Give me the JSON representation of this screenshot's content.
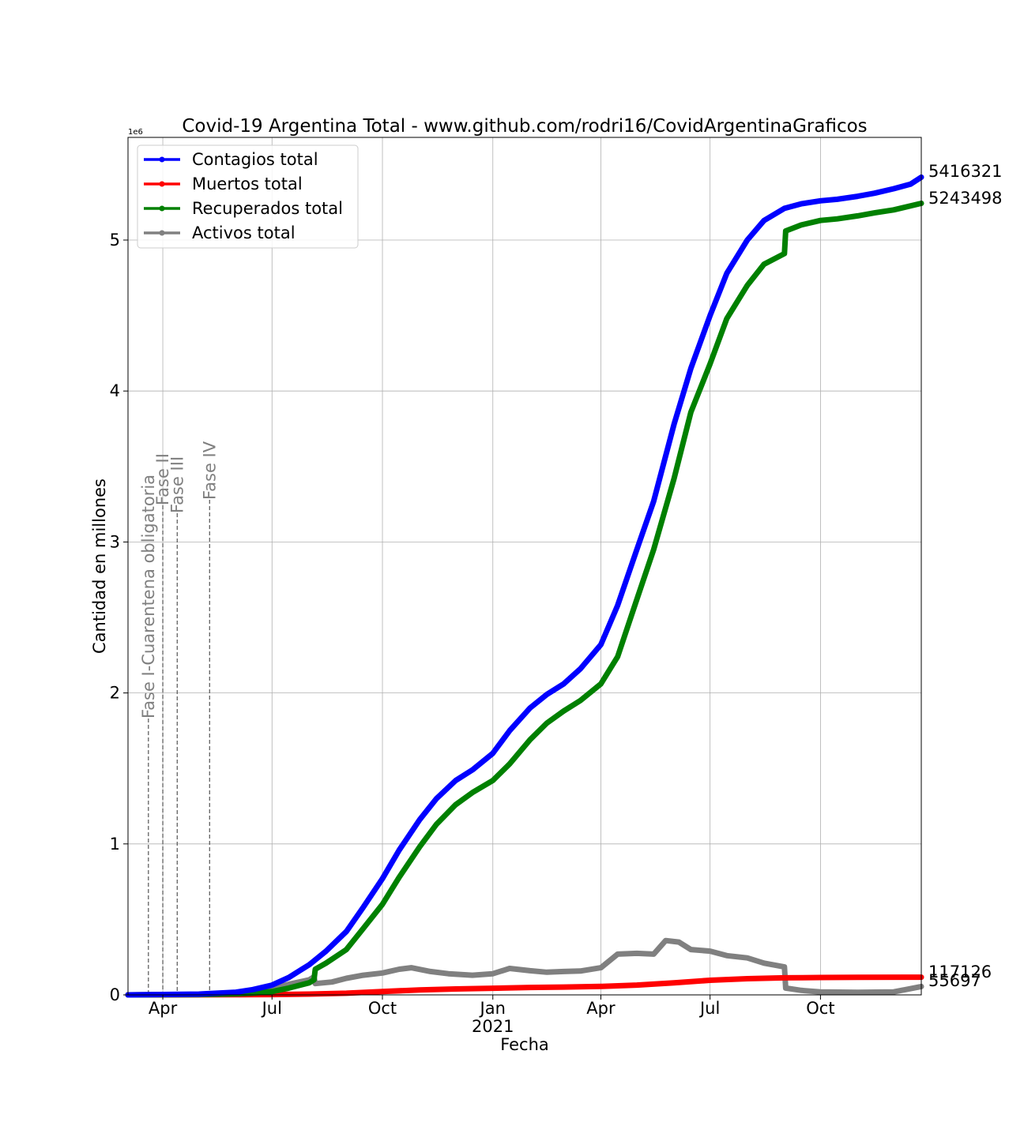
{
  "chart_data": {
    "type": "line",
    "title": "Covid-19 Argentina Total - www.github.com/rodri16/CovidArgentinaGraficos",
    "xlabel": "Fecha",
    "ylabel": "Cantidad en millones",
    "y_scale_label": "1e6",
    "xlim": [
      "2020-03-03",
      "2021-12-24"
    ],
    "ylim": [
      0,
      5.68
    ],
    "grid": true,
    "legend_position": "top-left",
    "x_ticks": [
      {
        "date": "2020-04-01",
        "label": "Apr"
      },
      {
        "date": "2020-07-01",
        "label": "Jul"
      },
      {
        "date": "2020-10-01",
        "label": "Oct"
      },
      {
        "date": "2021-01-01",
        "label": "Jan"
      },
      {
        "date": "2021-04-01",
        "label": "Apr"
      },
      {
        "date": "2021-07-01",
        "label": "Jul"
      },
      {
        "date": "2021-10-01",
        "label": "Oct"
      }
    ],
    "x_year_label": "2021",
    "y_ticks": [
      0,
      1,
      2,
      3,
      4,
      5
    ],
    "phases": [
      {
        "date": "2020-03-20",
        "label": "Fase I-Cuarentena obligatoria"
      },
      {
        "date": "2020-04-01",
        "label": "Fase II"
      },
      {
        "date": "2020-04-13",
        "label": "Fase III"
      },
      {
        "date": "2020-05-10",
        "label": "Fase IV"
      }
    ],
    "series": [
      {
        "name": "Contagios total",
        "color": "#0000ff",
        "end_label": "5416321",
        "points": [
          [
            "2020-03-03",
            0
          ],
          [
            "2020-05-01",
            0.005
          ],
          [
            "2020-06-01",
            0.018
          ],
          [
            "2020-06-15",
            0.035
          ],
          [
            "2020-07-01",
            0.065
          ],
          [
            "2020-07-15",
            0.115
          ],
          [
            "2020-08-01",
            0.2
          ],
          [
            "2020-08-15",
            0.29
          ],
          [
            "2020-09-01",
            0.42
          ],
          [
            "2020-09-15",
            0.58
          ],
          [
            "2020-10-01",
            0.77
          ],
          [
            "2020-10-15",
            0.96
          ],
          [
            "2020-11-01",
            1.16
          ],
          [
            "2020-11-15",
            1.3
          ],
          [
            "2020-12-01",
            1.42
          ],
          [
            "2020-12-15",
            1.49
          ],
          [
            "2021-01-01",
            1.6
          ],
          [
            "2021-01-15",
            1.75
          ],
          [
            "2021-02-01",
            1.9
          ],
          [
            "2021-02-15",
            1.99
          ],
          [
            "2021-03-01",
            2.06
          ],
          [
            "2021-03-15",
            2.16
          ],
          [
            "2021-04-01",
            2.32
          ],
          [
            "2021-04-15",
            2.58
          ],
          [
            "2021-05-01",
            2.95
          ],
          [
            "2021-05-15",
            3.27
          ],
          [
            "2021-06-01",
            3.78
          ],
          [
            "2021-06-15",
            4.15
          ],
          [
            "2021-07-01",
            4.5
          ],
          [
            "2021-07-15",
            4.78
          ],
          [
            "2021-08-01",
            5.0
          ],
          [
            "2021-08-15",
            5.13
          ],
          [
            "2021-09-01",
            5.21
          ],
          [
            "2021-09-15",
            5.24
          ],
          [
            "2021-10-01",
            5.26
          ],
          [
            "2021-10-15",
            5.27
          ],
          [
            "2021-11-01",
            5.29
          ],
          [
            "2021-11-15",
            5.31
          ],
          [
            "2021-12-01",
            5.34
          ],
          [
            "2021-12-15",
            5.37
          ],
          [
            "2021-12-24",
            5.416321
          ]
        ]
      },
      {
        "name": "Muertos total",
        "color": "#ff0000",
        "end_label": "117126",
        "points": [
          [
            "2020-03-03",
            0
          ],
          [
            "2020-06-01",
            0.001
          ],
          [
            "2020-07-01",
            0.002
          ],
          [
            "2020-08-01",
            0.005
          ],
          [
            "2020-09-01",
            0.011
          ],
          [
            "2020-10-01",
            0.022
          ],
          [
            "2020-11-01",
            0.033
          ],
          [
            "2020-12-01",
            0.039
          ],
          [
            "2021-01-01",
            0.044
          ],
          [
            "2021-02-01",
            0.049
          ],
          [
            "2021-03-01",
            0.052
          ],
          [
            "2021-04-01",
            0.056
          ],
          [
            "2021-05-01",
            0.065
          ],
          [
            "2021-06-01",
            0.08
          ],
          [
            "2021-07-01",
            0.097
          ],
          [
            "2021-08-01",
            0.107
          ],
          [
            "2021-09-01",
            0.113
          ],
          [
            "2021-10-01",
            0.115
          ],
          [
            "2021-11-01",
            0.116
          ],
          [
            "2021-12-24",
            0.117126
          ]
        ]
      },
      {
        "name": "Recuperados total",
        "color": "#008000",
        "end_label": "5243498",
        "points": [
          [
            "2020-03-03",
            0
          ],
          [
            "2020-05-01",
            0.002
          ],
          [
            "2020-06-01",
            0.007
          ],
          [
            "2020-06-15",
            0.012
          ],
          [
            "2020-07-01",
            0.022
          ],
          [
            "2020-07-15",
            0.045
          ],
          [
            "2020-08-01",
            0.08
          ],
          [
            "2020-08-05",
            0.1
          ],
          [
            "2020-08-06",
            0.17
          ],
          [
            "2020-08-15",
            0.21
          ],
          [
            "2020-09-01",
            0.3
          ],
          [
            "2020-09-15",
            0.44
          ],
          [
            "2020-10-01",
            0.6
          ],
          [
            "2020-10-15",
            0.78
          ],
          [
            "2020-11-01",
            0.98
          ],
          [
            "2020-11-15",
            1.13
          ],
          [
            "2020-12-01",
            1.26
          ],
          [
            "2020-12-15",
            1.34
          ],
          [
            "2021-01-01",
            1.42
          ],
          [
            "2021-01-15",
            1.53
          ],
          [
            "2021-02-01",
            1.69
          ],
          [
            "2021-02-15",
            1.8
          ],
          [
            "2021-03-01",
            1.88
          ],
          [
            "2021-03-15",
            1.95
          ],
          [
            "2021-04-01",
            2.06
          ],
          [
            "2021-04-15",
            2.24
          ],
          [
            "2021-05-01",
            2.62
          ],
          [
            "2021-05-15",
            2.95
          ],
          [
            "2021-06-01",
            3.42
          ],
          [
            "2021-06-15",
            3.86
          ],
          [
            "2021-07-01",
            4.18
          ],
          [
            "2021-07-15",
            4.48
          ],
          [
            "2021-08-01",
            4.7
          ],
          [
            "2021-08-15",
            4.84
          ],
          [
            "2021-09-01",
            4.91
          ],
          [
            "2021-09-02",
            5.06
          ],
          [
            "2021-09-15",
            5.1
          ],
          [
            "2021-10-01",
            5.13
          ],
          [
            "2021-10-15",
            5.14
          ],
          [
            "2021-11-01",
            5.16
          ],
          [
            "2021-11-15",
            5.18
          ],
          [
            "2021-12-01",
            5.2
          ],
          [
            "2021-12-24",
            5.243498
          ]
        ]
      },
      {
        "name": "Activos total",
        "color": "#808080",
        "end_label": "55697",
        "points": [
          [
            "2020-03-03",
            0
          ],
          [
            "2020-05-01",
            0.003
          ],
          [
            "2020-06-01",
            0.012
          ],
          [
            "2020-06-15",
            0.025
          ],
          [
            "2020-07-01",
            0.043
          ],
          [
            "2020-07-15",
            0.07
          ],
          [
            "2020-08-01",
            0.1
          ],
          [
            "2020-08-05",
            0.12
          ],
          [
            "2020-08-06",
            0.075
          ],
          [
            "2020-08-20",
            0.085
          ],
          [
            "2020-09-01",
            0.11
          ],
          [
            "2020-09-15",
            0.13
          ],
          [
            "2020-10-01",
            0.145
          ],
          [
            "2020-10-15",
            0.17
          ],
          [
            "2020-10-25",
            0.18
          ],
          [
            "2020-11-10",
            0.155
          ],
          [
            "2020-11-25",
            0.14
          ],
          [
            "2020-12-15",
            0.13
          ],
          [
            "2021-01-01",
            0.14
          ],
          [
            "2021-01-15",
            0.175
          ],
          [
            "2021-02-01",
            0.16
          ],
          [
            "2021-02-15",
            0.15
          ],
          [
            "2021-03-01",
            0.155
          ],
          [
            "2021-03-15",
            0.158
          ],
          [
            "2021-04-01",
            0.18
          ],
          [
            "2021-04-15",
            0.27
          ],
          [
            "2021-05-01",
            0.275
          ],
          [
            "2021-05-15",
            0.27
          ],
          [
            "2021-05-25",
            0.36
          ],
          [
            "2021-06-05",
            0.35
          ],
          [
            "2021-06-15",
            0.3
          ],
          [
            "2021-07-01",
            0.29
          ],
          [
            "2021-07-15",
            0.26
          ],
          [
            "2021-08-01",
            0.245
          ],
          [
            "2021-08-15",
            0.21
          ],
          [
            "2021-09-01",
            0.185
          ],
          [
            "2021-09-02",
            0.045
          ],
          [
            "2021-09-15",
            0.03
          ],
          [
            "2021-10-01",
            0.02
          ],
          [
            "2021-11-01",
            0.017
          ],
          [
            "2021-12-01",
            0.02
          ],
          [
            "2021-12-24",
            0.055697
          ]
        ]
      }
    ]
  }
}
